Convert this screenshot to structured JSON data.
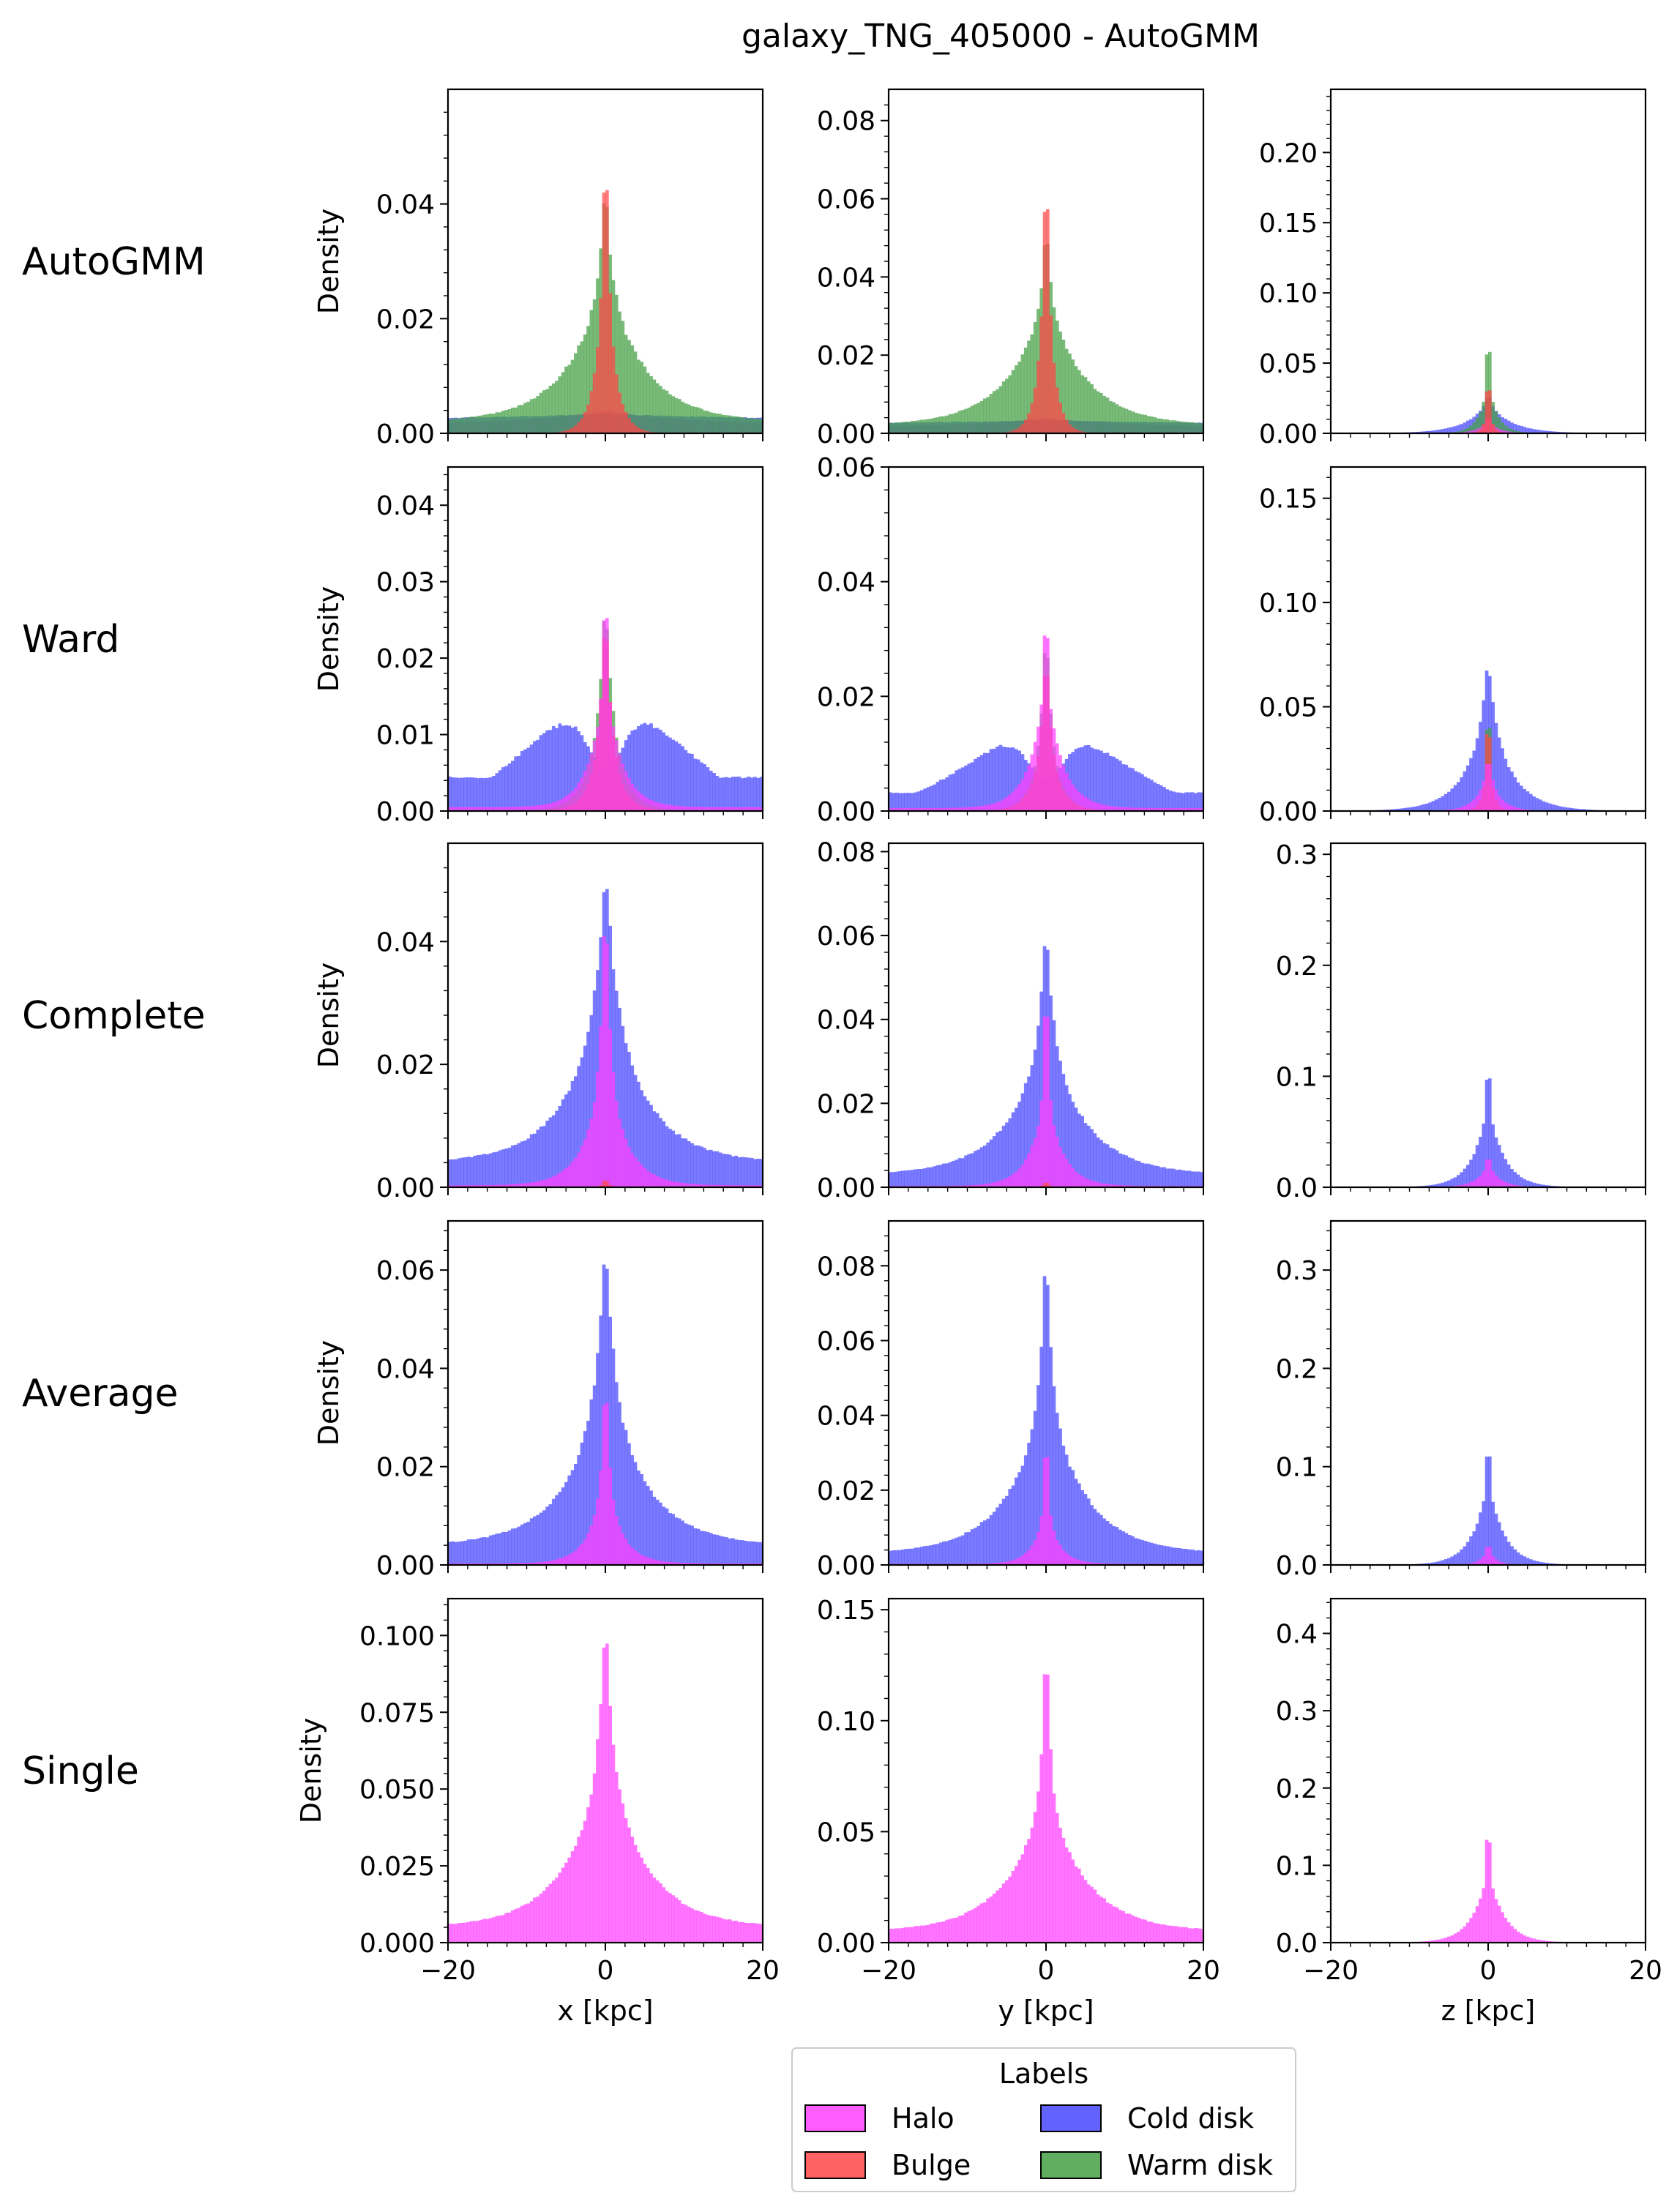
{
  "figure": {
    "title": "galaxy_TNG_405000 - AutoGMM"
  },
  "methods": [
    "AutoGMM",
    "Ward",
    "Complete",
    "Average",
    "Single"
  ],
  "components": [
    "Halo",
    "Bulge",
    "Cold disk",
    "Warm disk"
  ],
  "colors": {
    "Halo": "#ff40ff",
    "Bulge": "#ff4646",
    "Cold disk": "#4646ff",
    "Warm disk": "#45a045"
  },
  "legend": {
    "title": "Labels",
    "placement": "bottom-center",
    "entries": [
      "Halo",
      "Cold disk",
      "Bulge",
      "Warm disk"
    ]
  },
  "chart_data": {
    "type": "histogram-grid",
    "xlim": [
      -20,
      20
    ],
    "xticks": [
      -20,
      0,
      20
    ],
    "tick_labels": [
      "−20",
      "0",
      "20"
    ],
    "xlabels": [
      "x [kpc]",
      "y [kpc]",
      "z [kpc]"
    ],
    "ylabel": "Density",
    "grid": false,
    "rows": [
      {
        "method": "AutoGMM",
        "panels": [
          {
            "axis": "x",
            "ylim": [
              0,
              0.06
            ],
            "yticks": [
              0,
              0.02,
              0.04
            ],
            "tick_labels": [
              "0.00",
              "0.02",
              "0.04"
            ],
            "series": [
              {
                "label": "Halo",
                "peak": 0.004,
                "w_core": 0.2,
                "w_wing": 10,
                "f_core": 0,
                "floor": 0.0015
              },
              {
                "label": "Cold disk",
                "peak": 0.0035,
                "w_core": 1,
                "w_wing": 30,
                "f_core": 0.1,
                "floor": 0.002
              },
              {
                "label": "Warm disk",
                "peak": 0.0445,
                "w_core": 0.7,
                "w_wing": 5,
                "f_core": 0.4,
                "floor": 0.002
              },
              {
                "label": "Bulge",
                "peak": 0.058,
                "w_core": 0.35,
                "w_wing": 1.2,
                "f_core": 0.45,
                "floor": 0
              }
            ]
          },
          {
            "axis": "y",
            "ylim": [
              0,
              0.088
            ],
            "yticks": [
              0,
              0.02,
              0.04,
              0.06,
              0.08
            ],
            "tick_labels": [
              "0.00",
              "0.02",
              "0.04",
              "0.06",
              "0.08"
            ],
            "series": [
              {
                "label": "Halo",
                "peak": 0.004,
                "w_core": 0.2,
                "w_wing": 10,
                "f_core": 0,
                "floor": 0.0015
              },
              {
                "label": "Cold disk",
                "peak": 0.0035,
                "w_core": 1,
                "w_wing": 30,
                "f_core": 0.1,
                "floor": 0.002
              },
              {
                "label": "Warm disk",
                "peak": 0.057,
                "w_core": 0.5,
                "w_wing": 5,
                "f_core": 0.4,
                "floor": 0.002
              },
              {
                "label": "Bulge",
                "peak": 0.084,
                "w_core": 0.3,
                "w_wing": 1.0,
                "f_core": 0.45,
                "floor": 0
              }
            ]
          },
          {
            "axis": "z",
            "ylim": [
              0,
              0.245
            ],
            "yticks": [
              0,
              0.05,
              0.1,
              0.15,
              0.2
            ],
            "tick_labels": [
              "0.00",
              "0.05",
              "0.10",
              "0.15",
              "0.20"
            ],
            "series": [
              {
                "label": "Cold disk",
                "peak": 0.03,
                "w_core": 0.5,
                "w_wing": 3,
                "f_core": 0.3,
                "floor": 0
              },
              {
                "label": "Warm disk",
                "peak": 0.236,
                "w_core": 0.1,
                "w_wing": 1.2,
                "f_core": 0.85,
                "floor": 0
              },
              {
                "label": "Halo",
                "peak": 0.015,
                "w_core": 0.3,
                "w_wing": 1.5,
                "f_core": 0.5,
                "floor": 0
              },
              {
                "label": "Bulge",
                "peak": 0.14,
                "w_core": 0.1,
                "w_wing": 0.5,
                "f_core": 0.85,
                "floor": 0
              }
            ]
          }
        ]
      },
      {
        "method": "Ward",
        "panels": [
          {
            "axis": "x",
            "ylim": [
              0,
              0.045
            ],
            "yticks": [
              0,
              0.01,
              0.02,
              0.03,
              0.04
            ],
            "tick_labels": [
              "0.00",
              "0.01",
              "0.02",
              "0.03",
              "0.04"
            ],
            "series": [
              {
                "label": "Cold disk",
                "kind": "bimodal",
                "peak": 0.012,
                "center": 5,
                "width": 8,
                "floor": 0.0055,
                "dip": 0.008
              },
              {
                "label": "Warm disk",
                "peak": 0.029,
                "w_core": 0.8,
                "w_wing": 2,
                "f_core": 0.5,
                "floor": 0
              },
              {
                "label": "Bulge",
                "peak": 0.028,
                "w_core": 0.6,
                "w_wing": 1.5,
                "f_core": 0.5,
                "floor": 0
              },
              {
                "label": "Halo",
                "peak": 0.0435,
                "w_core": 0.2,
                "w_wing": 2,
                "f_core": 0.6,
                "floor": 0.0005
              }
            ]
          },
          {
            "axis": "y",
            "ylim": [
              0,
              0.06
            ],
            "yticks": [
              0,
              0.02,
              0.04,
              0.06
            ],
            "tick_labels": [
              "0.00",
              "0.02",
              "0.04",
              "0.06"
            ],
            "series": [
              {
                "label": "Cold disk",
                "kind": "bimodal",
                "peak": 0.012,
                "center": 5,
                "width": 8,
                "floor": 0.004,
                "dip": 0.008
              },
              {
                "label": "Warm disk",
                "peak": 0.035,
                "w_core": 0.5,
                "w_wing": 1.5,
                "f_core": 0.5,
                "floor": 0
              },
              {
                "label": "Bulge",
                "peak": 0.03,
                "w_core": 0.5,
                "w_wing": 1.5,
                "f_core": 0.5,
                "floor": 0
              },
              {
                "label": "Halo",
                "peak": 0.058,
                "w_core": 0.15,
                "w_wing": 2,
                "f_core": 0.6,
                "floor": 0.0005
              }
            ]
          },
          {
            "axis": "z",
            "ylim": [
              0,
              0.165
            ],
            "yticks": [
              0,
              0.05,
              0.1,
              0.15
            ],
            "tick_labels": [
              "0.00",
              "0.05",
              "0.10",
              "0.15"
            ],
            "series": [
              {
                "label": "Cold disk",
                "peak": 0.075,
                "w_core": 0.8,
                "w_wing": 3,
                "f_core": 0.35,
                "floor": 0
              },
              {
                "label": "Warm disk",
                "peak": 0.157,
                "w_core": 0.1,
                "w_wing": 0.6,
                "f_core": 0.8,
                "floor": 0
              },
              {
                "label": "Bulge",
                "peak": 0.09,
                "w_core": 0.15,
                "w_wing": 0.6,
                "f_core": 0.7,
                "floor": 0
              },
              {
                "label": "Halo",
                "peak": 0.03,
                "w_core": 0.4,
                "w_wing": 1.5,
                "f_core": 0.4,
                "floor": 0
              }
            ]
          }
        ]
      },
      {
        "method": "Complete",
        "panels": [
          {
            "axis": "x",
            "ylim": [
              0,
              0.056
            ],
            "yticks": [
              0,
              0.02,
              0.04
            ],
            "tick_labels": [
              "0.00",
              "0.02",
              "0.04"
            ],
            "series": [
              {
                "label": "Cold disk",
                "peak": 0.0525,
                "w_core": 1.2,
                "w_wing": 5,
                "f_core": 0.4,
                "floor": 0.004
              },
              {
                "label": "Halo",
                "peak": 0.052,
                "w_core": 0.5,
                "w_wing": 2.5,
                "f_core": 0.6,
                "floor": 0.0003
              },
              {
                "label": "Bulge",
                "peak": 0.002,
                "w_core": 0.2,
                "w_wing": 0.5,
                "f_core": 0.5,
                "floor": 0
              }
            ]
          },
          {
            "axis": "y",
            "ylim": [
              0,
              0.082
            ],
            "yticks": [
              0,
              0.02,
              0.04,
              0.06,
              0.08
            ],
            "tick_labels": [
              "0.00",
              "0.02",
              "0.04",
              "0.06",
              "0.08"
            ],
            "series": [
              {
                "label": "Cold disk",
                "peak": 0.065,
                "w_core": 0.8,
                "w_wing": 5,
                "f_core": 0.45,
                "floor": 0.003
              },
              {
                "label": "Halo",
                "peak": 0.078,
                "w_core": 0.2,
                "w_wing": 2,
                "f_core": 0.7,
                "floor": 0.0003
              },
              {
                "label": "Bulge",
                "peak": 0.002,
                "w_core": 0.2,
                "w_wing": 0.5,
                "f_core": 0.5,
                "floor": 0
              }
            ]
          },
          {
            "axis": "z",
            "ylim": [
              0,
              0.31
            ],
            "yticks": [
              0,
              0.1,
              0.2,
              0.3
            ],
            "tick_labels": [
              "0.0",
              "0.1",
              "0.2",
              "0.3"
            ],
            "series": [
              {
                "label": "Cold disk",
                "peak": 0.3,
                "w_core": 0.1,
                "w_wing": 2,
                "f_core": 0.75,
                "floor": 0
              },
              {
                "label": "Halo",
                "peak": 0.04,
                "w_core": 0.2,
                "w_wing": 1.5,
                "f_core": 0.5,
                "floor": 0
              }
            ]
          }
        ]
      },
      {
        "method": "Average",
        "panels": [
          {
            "axis": "x",
            "ylim": [
              0,
              0.07
            ],
            "yticks": [
              0,
              0.02,
              0.04,
              0.06
            ],
            "tick_labels": [
              "0.00",
              "0.02",
              "0.04",
              "0.06"
            ],
            "series": [
              {
                "label": "Cold disk",
                "peak": 0.0675,
                "w_core": 1.0,
                "w_wing": 5,
                "f_core": 0.45,
                "floor": 0.004
              },
              {
                "label": "Halo",
                "peak": 0.045,
                "w_core": 0.4,
                "w_wing": 2,
                "f_core": 0.6,
                "floor": 0.0003
              }
            ]
          },
          {
            "axis": "y",
            "ylim": [
              0,
              0.092
            ],
            "yticks": [
              0,
              0.02,
              0.04,
              0.06,
              0.08
            ],
            "tick_labels": [
              "0.00",
              "0.02",
              "0.04",
              "0.06",
              "0.08"
            ],
            "series": [
              {
                "label": "Cold disk",
                "peak": 0.088,
                "w_core": 0.7,
                "w_wing": 5,
                "f_core": 0.5,
                "floor": 0.003
              },
              {
                "label": "Halo",
                "peak": 0.055,
                "w_core": 0.2,
                "w_wing": 1.5,
                "f_core": 0.7,
                "floor": 0.0003
              }
            ]
          },
          {
            "axis": "z",
            "ylim": [
              0,
              0.35
            ],
            "yticks": [
              0,
              0.1,
              0.2,
              0.3
            ],
            "tick_labels": [
              "0.0",
              "0.1",
              "0.2",
              "0.3"
            ],
            "series": [
              {
                "label": "Cold disk",
                "peak": 0.345,
                "w_core": 0.1,
                "w_wing": 2,
                "f_core": 0.75,
                "floor": 0
              },
              {
                "label": "Halo",
                "peak": 0.03,
                "w_core": 0.2,
                "w_wing": 1,
                "f_core": 0.5,
                "floor": 0
              }
            ]
          }
        ]
      },
      {
        "method": "Single",
        "panels": [
          {
            "axis": "x",
            "ylim": [
              0,
              0.112
            ],
            "yticks": [
              0,
              0.025,
              0.05,
              0.075,
              0.1
            ],
            "tick_labels": [
              "0.000",
              "0.025",
              "0.050",
              "0.075",
              "0.100"
            ],
            "series": [
              {
                "label": "Halo",
                "peak": 0.108,
                "w_core": 0.8,
                "w_wing": 5,
                "f_core": 0.45,
                "floor": 0.005
              }
            ]
          },
          {
            "axis": "y",
            "ylim": [
              0,
              0.155
            ],
            "yticks": [
              0,
              0.05,
              0.1,
              0.15
            ],
            "tick_labels": [
              "0.00",
              "0.05",
              "0.10",
              "0.15"
            ],
            "series": [
              {
                "label": "Halo",
                "peak": 0.147,
                "w_core": 0.5,
                "w_wing": 5,
                "f_core": 0.55,
                "floor": 0.005
              }
            ]
          },
          {
            "axis": "z",
            "ylim": [
              0,
              0.445
            ],
            "yticks": [
              0,
              0.1,
              0.2,
              0.3,
              0.4
            ],
            "tick_labels": [
              "0.0",
              "0.1",
              "0.2",
              "0.3",
              "0.4"
            ],
            "series": [
              {
                "label": "Halo",
                "peak": 0.43,
                "w_core": 0.1,
                "w_wing": 2,
                "f_core": 0.78,
                "floor": 0
              }
            ]
          }
        ]
      }
    ]
  }
}
